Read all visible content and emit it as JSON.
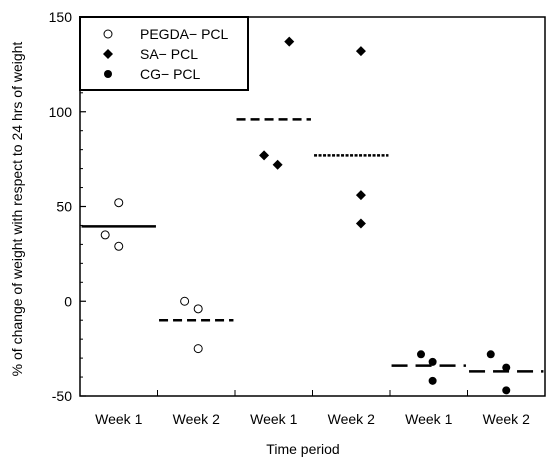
{
  "chart_data": {
    "type": "scatter",
    "xlabel": "Time period",
    "ylabel": "% of change of weight with respect to 24 hrs of weight",
    "ylim": [
      -50,
      150
    ],
    "yticks": [
      "150",
      "100",
      "50",
      "0",
      "-50"
    ],
    "categories": [
      "Week 1",
      "Week 2",
      "Week 1",
      "Week 2",
      "Week 1",
      "Week 2"
    ],
    "legend_position": "top-left",
    "series": [
      {
        "name": "PEGDA− PCL",
        "marker": "open-circle",
        "points": [
          {
            "category": 0,
            "offset": 0.0,
            "y": 52
          },
          {
            "category": 0,
            "offset": -0.35,
            "y": 35
          },
          {
            "category": 0,
            "offset": 0.0,
            "y": 29
          },
          {
            "category": 1,
            "offset": -0.3,
            "y": 0
          },
          {
            "category": 1,
            "offset": 0.05,
            "y": -4
          },
          {
            "category": 1,
            "offset": 0.05,
            "y": -25
          }
        ],
        "means": [
          {
            "category": 0,
            "y": 39.5,
            "style": "solid"
          },
          {
            "category": 1,
            "y": -10,
            "style": "dashed"
          }
        ]
      },
      {
        "name": "SA− PCL",
        "marker": "filled-diamond",
        "points": [
          {
            "category": 2,
            "offset": 0.4,
            "y": 137
          },
          {
            "category": 2,
            "offset": -0.25,
            "y": 77
          },
          {
            "category": 2,
            "offset": 0.1,
            "y": 72
          },
          {
            "category": 3,
            "offset": 0.25,
            "y": 132
          },
          {
            "category": 3,
            "offset": 0.25,
            "y": 56
          },
          {
            "category": 3,
            "offset": 0.25,
            "y": 41
          }
        ],
        "means": [
          {
            "category": 2,
            "y": 96,
            "style": "dashed"
          },
          {
            "category": 3,
            "y": 77,
            "style": "dotted"
          }
        ]
      },
      {
        "name": "CG− PCL",
        "marker": "filled-circle",
        "points": [
          {
            "category": 4,
            "offset": -0.2,
            "y": -28
          },
          {
            "category": 4,
            "offset": 0.1,
            "y": -32
          },
          {
            "category": 4,
            "offset": 0.1,
            "y": -42
          },
          {
            "category": 5,
            "offset": -0.4,
            "y": -28
          },
          {
            "category": 5,
            "offset": 0.0,
            "y": -35
          },
          {
            "category": 5,
            "offset": 0.0,
            "y": -47
          }
        ],
        "means": [
          {
            "category": 4,
            "y": -34,
            "style": "long-dash"
          },
          {
            "category": 5,
            "y": -37,
            "style": "long-dash"
          }
        ]
      }
    ]
  }
}
